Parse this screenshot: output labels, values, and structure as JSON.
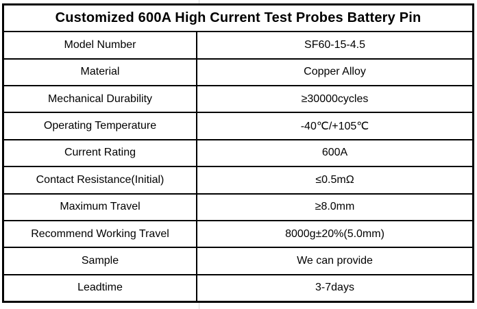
{
  "table": {
    "title": "Customized 600A High Current Test Probes Battery Pin",
    "rows": [
      {
        "label": "Model Number",
        "value": "SF60-15-4.5"
      },
      {
        "label": "Material",
        "value": "Copper Alloy"
      },
      {
        "label": "Mechanical Durability",
        "value": "≥30000cycles"
      },
      {
        "label": "Operating Temperature",
        "value": "-40℃/+105℃"
      },
      {
        "label": "Current Rating",
        "value": "600A"
      },
      {
        "label": "Contact Resistance(Initial)",
        "value": "≤0.5mΩ"
      },
      {
        "label": "Maximum Travel",
        "value": "≥8.0mm"
      },
      {
        "label": "Recommend Working Travel",
        "value": "8000g±20%(5.0mm)"
      },
      {
        "label": "Sample",
        "value": "We can provide"
      },
      {
        "label": "Leadtime",
        "value": "3-7days"
      }
    ]
  },
  "colors": {
    "border": "#000000",
    "text": "#000000",
    "background": "#ffffff"
  }
}
